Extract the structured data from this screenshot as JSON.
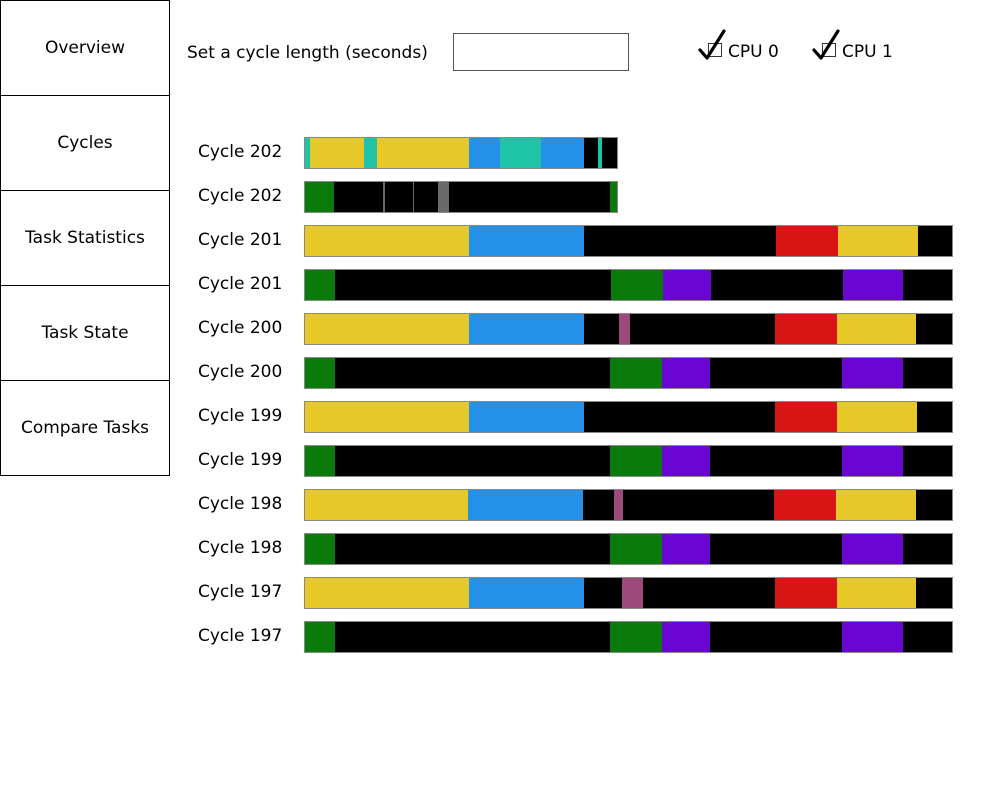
{
  "nav": {
    "items": [
      {
        "label": "Overview"
      },
      {
        "label": "Cycles"
      },
      {
        "label": "Task Statistics"
      },
      {
        "label": "Task State"
      },
      {
        "label": "Compare Tasks"
      }
    ]
  },
  "controls": {
    "cycle_length_label": "Set a cycle length (seconds)",
    "cycle_length_value": "",
    "cycle_length_placeholder": "",
    "cpu0_label": "CPU 0",
    "cpu0_checked": true,
    "cpu1_label": "CPU 1",
    "cpu1_checked": true
  },
  "colors": {
    "yellow": "#e6c829",
    "blue": "#2490e8",
    "teal": "#1fc4a8",
    "red": "#d81414",
    "green": "#0a7a0a",
    "purple": "#6a06d4",
    "magenta": "#9c4a7c",
    "gray": "#6a6a6a",
    "idle": "#000000"
  },
  "cycles": [
    {
      "label": "Cycle 202",
      "cpu": 0,
      "full_fraction": 0.484,
      "segments": [
        [
          "teal",
          0.0,
          0.016
        ],
        [
          "yellow",
          0.016,
          0.19
        ],
        [
          "teal",
          0.19,
          0.23
        ],
        [
          "yellow",
          0.23,
          0.525
        ],
        [
          "blue",
          0.525,
          0.625
        ],
        [
          "teal",
          0.625,
          0.755
        ],
        [
          "blue",
          0.755,
          0.895
        ],
        [
          "teal",
          0.94,
          0.952
        ]
      ]
    },
    {
      "label": "Cycle 202",
      "cpu": 1,
      "full_fraction": 0.484,
      "segments": [
        [
          "green",
          0.0,
          0.093
        ],
        [
          "gray",
          0.25,
          0.256
        ],
        [
          "gray",
          0.345,
          0.351
        ],
        [
          "gray",
          0.425,
          0.46
        ],
        [
          "green",
          0.978,
          1.0
        ]
      ]
    },
    {
      "label": "Cycle 201",
      "cpu": 0,
      "full_fraction": 1.0,
      "segments": [
        [
          "yellow",
          0.0,
          0.254
        ],
        [
          "blue",
          0.254,
          0.432
        ],
        [
          "red",
          0.728,
          0.824
        ],
        [
          "yellow",
          0.824,
          0.948
        ]
      ]
    },
    {
      "label": "Cycle 201",
      "cpu": 1,
      "full_fraction": 1.0,
      "segments": [
        [
          "green",
          0.0,
          0.047
        ],
        [
          "green",
          0.473,
          0.553
        ],
        [
          "purple",
          0.553,
          0.627
        ],
        [
          "purple",
          0.831,
          0.925
        ]
      ]
    },
    {
      "label": "Cycle 200",
      "cpu": 0,
      "full_fraction": 1.0,
      "segments": [
        [
          "yellow",
          0.0,
          0.254
        ],
        [
          "blue",
          0.254,
          0.431
        ],
        [
          "magenta",
          0.485,
          0.502
        ],
        [
          "red",
          0.726,
          0.822
        ],
        [
          "yellow",
          0.822,
          0.945
        ]
      ]
    },
    {
      "label": "Cycle 200",
      "cpu": 1,
      "full_fraction": 1.0,
      "segments": [
        [
          "green",
          0.0,
          0.046
        ],
        [
          "green",
          0.472,
          0.552
        ],
        [
          "purple",
          0.552,
          0.626
        ],
        [
          "purple",
          0.83,
          0.924
        ]
      ]
    },
    {
      "label": "Cycle 199",
      "cpu": 0,
      "full_fraction": 1.0,
      "segments": [
        [
          "yellow",
          0.0,
          0.253
        ],
        [
          "blue",
          0.253,
          0.431
        ],
        [
          "red",
          0.727,
          0.823
        ],
        [
          "yellow",
          0.823,
          0.946
        ]
      ]
    },
    {
      "label": "Cycle 199",
      "cpu": 1,
      "full_fraction": 1.0,
      "segments": [
        [
          "green",
          0.0,
          0.046
        ],
        [
          "green",
          0.472,
          0.552
        ],
        [
          "purple",
          0.552,
          0.626
        ],
        [
          "purple",
          0.83,
          0.924
        ]
      ]
    },
    {
      "label": "Cycle 198",
      "cpu": 0,
      "full_fraction": 1.0,
      "segments": [
        [
          "yellow",
          0.0,
          0.252
        ],
        [
          "blue",
          0.252,
          0.43
        ],
        [
          "magenta",
          0.478,
          0.492
        ],
        [
          "red",
          0.725,
          0.821
        ],
        [
          "yellow",
          0.821,
          0.944
        ]
      ]
    },
    {
      "label": "Cycle 198",
      "cpu": 1,
      "full_fraction": 1.0,
      "segments": [
        [
          "green",
          0.0,
          0.046
        ],
        [
          "green",
          0.472,
          0.552
        ],
        [
          "purple",
          0.552,
          0.626
        ],
        [
          "purple",
          0.83,
          0.924
        ]
      ]
    },
    {
      "label": "Cycle 197",
      "cpu": 0,
      "full_fraction": 1.0,
      "segments": [
        [
          "yellow",
          0.0,
          0.254
        ],
        [
          "blue",
          0.254,
          0.431
        ],
        [
          "magenta",
          0.49,
          0.523
        ],
        [
          "red",
          0.726,
          0.822
        ],
        [
          "yellow",
          0.822,
          0.945
        ]
      ]
    },
    {
      "label": "Cycle 197",
      "cpu": 1,
      "full_fraction": 1.0,
      "segments": [
        [
          "green",
          0.0,
          0.046
        ],
        [
          "green",
          0.472,
          0.552
        ],
        [
          "purple",
          0.552,
          0.626
        ],
        [
          "purple",
          0.83,
          0.924
        ]
      ]
    }
  ]
}
